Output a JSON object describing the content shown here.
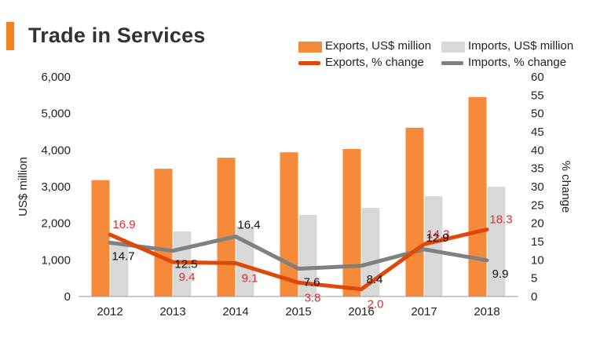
{
  "title": "Trade in Services",
  "colors": {
    "accent": "#f58220",
    "exports_bar": "#f58b3a",
    "imports_bar": "#d9d9d9",
    "exports_line": "#e0480a",
    "imports_line": "#808080",
    "exports_label": "#e8262a",
    "imports_label": "#111111"
  },
  "legend": {
    "exports_bar": "Exports, US$ million",
    "imports_bar": "Imports, US$ million",
    "exports_line": "Exports, % change",
    "imports_line": "Imports, % change"
  },
  "chart_data": {
    "type": "bar",
    "title": "Trade in Services",
    "categories": [
      "2012",
      "2013",
      "2014",
      "2015",
      "2016",
      "2017",
      "2018"
    ],
    "ylabel": "US$ million",
    "y2label": "% change",
    "ylim": [
      0,
      6000
    ],
    "y2lim": [
      0,
      60
    ],
    "yticks": [
      "0",
      "1,000",
      "2,000",
      "3,000",
      "4,000",
      "5,000",
      "6,000"
    ],
    "y2ticks": [
      "0",
      "5",
      "10",
      "15",
      "20",
      "25",
      "30",
      "35",
      "40",
      "45",
      "50",
      "55",
      "60"
    ],
    "series": [
      {
        "name": "Exports, US$ million",
        "type": "bar",
        "axis": "left",
        "values": [
          3180,
          3490,
          3790,
          3940,
          4030,
          4610,
          5450
        ]
      },
      {
        "name": "Imports, US$ million",
        "type": "bar",
        "axis": "left",
        "values": [
          1480,
          1780,
          1920,
          2230,
          2420,
          2740,
          3000
        ]
      },
      {
        "name": "Exports, % change",
        "type": "line",
        "axis": "right",
        "values": [
          16.9,
          9.4,
          9.1,
          3.8,
          2.0,
          14.3,
          18.3
        ],
        "labels": [
          "16.9",
          "9.4",
          "9.1",
          "3.8",
          "2.0",
          "14.3",
          "18.3"
        ]
      },
      {
        "name": "Imports, % change",
        "type": "line",
        "axis": "right",
        "values": [
          14.7,
          12.5,
          16.4,
          7.6,
          8.4,
          12.9,
          9.9
        ],
        "labels": [
          "14.7",
          "12.5",
          "16.4",
          "7.6",
          "8.4",
          "12.9",
          "9.9"
        ]
      }
    ],
    "grid": false,
    "legend_position": "top-right"
  }
}
